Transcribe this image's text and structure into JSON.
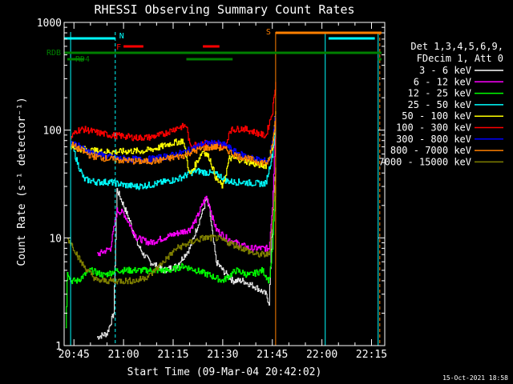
{
  "chart_data": {
    "type": "line",
    "title": "RHESSI Observing Summary Count Rates",
    "xlabel": "Start Time (09-Mar-04 20:42:02)",
    "ylabel": "Count Rate (s⁻¹ detector⁻¹)",
    "y_scale": "log",
    "ylim": [
      1,
      1000
    ],
    "xlim": [
      "20:42:02",
      "22:19:00"
    ],
    "x_ticks": [
      "20:45",
      "21:00",
      "21:15",
      "21:30",
      "21:45",
      "22:00",
      "22:15"
    ],
    "y_ticks": [
      "1",
      "10",
      "100",
      "1000"
    ],
    "grid": false,
    "legend_position": "right",
    "legend_header": [
      "Det 1,3,4,5,6,9,",
      "FDecim 1, Att 0"
    ],
    "timestamp": "15-Oct-2021 18:58",
    "flags": [
      {
        "label": "N",
        "color": "#00ffff",
        "segments": [
          [
            "20:42",
            "20:57:30"
          ],
          [
            "22:02",
            "22:16"
          ]
        ]
      },
      {
        "label": "F",
        "color": "#ff0000",
        "segments": [
          [
            "21:00",
            "21:06"
          ],
          [
            "21:24",
            "21:29"
          ]
        ]
      },
      {
        "label": "S",
        "color": "#ff8000",
        "segments": [
          [
            "21:46",
            "22:18"
          ]
        ]
      },
      {
        "label": "RDB",
        "color": "#008000",
        "segments": [
          [
            "20:42",
            "22:18"
          ]
        ]
      },
      {
        "label": "RD4",
        "color": "#008000",
        "segments": [
          [
            "20:43",
            "20:48"
          ],
          [
            "21:19",
            "21:33"
          ],
          [
            "22:17",
            "22:18"
          ]
        ]
      }
    ],
    "vlines": [
      {
        "time": "20:44",
        "color": "#00ffff",
        "style": "solid"
      },
      {
        "time": "20:57:30",
        "color": "#00ffff",
        "style": "dashed"
      },
      {
        "time": "21:46",
        "color": "#ff8000",
        "style": "solid"
      },
      {
        "time": "22:01",
        "color": "#00ffff",
        "style": "solid"
      },
      {
        "time": "22:17",
        "color": "#00ffff",
        "style": "solid"
      },
      {
        "time": "22:17:30",
        "color": "#ff8000",
        "style": "dashed"
      }
    ],
    "series": [
      {
        "name": "3 - 6 keV",
        "color": "#000000",
        "points": [
          [
            "20:52",
            1.2
          ],
          [
            "20:55",
            1.3
          ],
          [
            "20:57",
            2.0
          ],
          [
            "20:58",
            28
          ],
          [
            "21:00",
            20
          ],
          [
            "21:02",
            14
          ],
          [
            "21:04",
            9
          ],
          [
            "21:06",
            7
          ],
          [
            "21:08",
            6
          ],
          [
            "21:12",
            5
          ],
          [
            "21:16",
            5.5
          ],
          [
            "21:20",
            8
          ],
          [
            "21:22",
            12
          ],
          [
            "21:24",
            18
          ],
          [
            "21:25",
            23
          ],
          [
            "21:26",
            18
          ],
          [
            "21:27",
            10
          ],
          [
            "21:28",
            6
          ],
          [
            "21:30",
            5
          ],
          [
            "21:33",
            4
          ],
          [
            "21:36",
            4
          ],
          [
            "21:40",
            3.5
          ],
          [
            "21:43",
            3
          ],
          [
            "21:44",
            2.5
          ],
          [
            "21:45",
            15
          ],
          [
            "21:46",
            45
          ]
        ]
      },
      {
        "name": "6 - 12 keV",
        "color": "#ff00ff",
        "points": [
          [
            "20:52",
            7
          ],
          [
            "20:56",
            8
          ],
          [
            "20:58",
            18
          ],
          [
            "21:00",
            17
          ],
          [
            "21:02",
            13
          ],
          [
            "21:04",
            10
          ],
          [
            "21:08",
            9
          ],
          [
            "21:12",
            10
          ],
          [
            "21:16",
            11
          ],
          [
            "21:20",
            12
          ],
          [
            "21:22",
            15
          ],
          [
            "21:24",
            21
          ],
          [
            "21:25",
            24
          ],
          [
            "21:26",
            20
          ],
          [
            "21:27",
            15
          ],
          [
            "21:28",
            12
          ],
          [
            "21:31",
            10
          ],
          [
            "21:34",
            9
          ],
          [
            "21:38",
            8
          ],
          [
            "21:42",
            8
          ],
          [
            "21:44",
            8
          ],
          [
            "21:45",
            20
          ],
          [
            "21:46",
            120
          ]
        ]
      },
      {
        "name": "12 - 25 keV",
        "color": "#00ff00",
        "points": [
          [
            "20:42:30",
            1.5
          ],
          [
            "20:43",
            5
          ],
          [
            "20:44",
            4
          ],
          [
            "20:46",
            4
          ],
          [
            "20:50",
            5
          ],
          [
            "20:54",
            4.5
          ],
          [
            "20:58",
            5
          ],
          [
            "21:02",
            5
          ],
          [
            "21:06",
            5
          ],
          [
            "21:10",
            5
          ],
          [
            "21:14",
            5
          ],
          [
            "21:18",
            5.5
          ],
          [
            "21:22",
            5
          ],
          [
            "21:26",
            4.5
          ],
          [
            "21:30",
            4
          ],
          [
            "21:34",
            5
          ],
          [
            "21:38",
            4.5
          ],
          [
            "21:42",
            5
          ],
          [
            "21:44",
            4
          ],
          [
            "21:45",
            8
          ],
          [
            "21:46",
            30
          ]
        ]
      },
      {
        "name": "25 - 50 keV",
        "color": "#00ffff",
        "points": [
          [
            "20:44",
            80
          ],
          [
            "20:46",
            50
          ],
          [
            "20:48",
            35
          ],
          [
            "20:52",
            33
          ],
          [
            "20:56",
            33
          ],
          [
            "21:00",
            31
          ],
          [
            "21:04",
            30
          ],
          [
            "21:08",
            31
          ],
          [
            "21:12",
            33
          ],
          [
            "21:16",
            35
          ],
          [
            "21:18",
            37
          ],
          [
            "21:20",
            40
          ],
          [
            "21:22",
            42
          ],
          [
            "21:26",
            40
          ],
          [
            "21:29",
            38
          ],
          [
            "21:31",
            34
          ],
          [
            "21:33",
            33
          ],
          [
            "21:36",
            33
          ],
          [
            "21:40",
            32
          ],
          [
            "21:43",
            32
          ],
          [
            "21:45",
            60
          ],
          [
            "21:46",
            110
          ]
        ]
      },
      {
        "name": "50 - 100 keV",
        "color": "#ffff00",
        "points": [
          [
            "20:44",
            70
          ],
          [
            "20:46",
            68
          ],
          [
            "20:50",
            65
          ],
          [
            "20:54",
            63
          ],
          [
            "20:58",
            63
          ],
          [
            "21:02",
            64
          ],
          [
            "21:06",
            64
          ],
          [
            "21:10",
            68
          ],
          [
            "21:14",
            75
          ],
          [
            "21:18",
            80
          ],
          [
            "21:20",
            38
          ],
          [
            "21:22",
            50
          ],
          [
            "21:24",
            65
          ],
          [
            "21:26",
            55
          ],
          [
            "21:28",
            35
          ],
          [
            "21:30",
            30
          ],
          [
            "21:32",
            55
          ],
          [
            "21:36",
            53
          ],
          [
            "21:40",
            48
          ],
          [
            "21:43",
            47
          ],
          [
            "21:45",
            70
          ],
          [
            "21:46",
            150
          ]
        ]
      },
      {
        "name": "100 - 300 keV",
        "color": "#ff0000",
        "points": [
          [
            "20:44",
            85
          ],
          [
            "20:46",
            100
          ],
          [
            "20:48",
            102
          ],
          [
            "20:52",
            95
          ],
          [
            "20:56",
            90
          ],
          [
            "21:00",
            88
          ],
          [
            "21:04",
            85
          ],
          [
            "21:08",
            86
          ],
          [
            "21:12",
            92
          ],
          [
            "21:16",
            105
          ],
          [
            "21:19",
            110
          ],
          [
            "21:20",
            72
          ],
          [
            "21:24",
            76
          ],
          [
            "21:28",
            74
          ],
          [
            "21:31",
            72
          ],
          [
            "21:32",
            100
          ],
          [
            "21:36",
            104
          ],
          [
            "21:40",
            95
          ],
          [
            "21:43",
            88
          ],
          [
            "21:45",
            150
          ],
          [
            "21:46",
            280
          ]
        ]
      },
      {
        "name": "300 - 800 keV",
        "color": "#0000ff",
        "points": [
          [
            "20:44",
            78
          ],
          [
            "20:46",
            72
          ],
          [
            "20:50",
            62
          ],
          [
            "20:54",
            58
          ],
          [
            "20:58",
            55
          ],
          [
            "21:02",
            54
          ],
          [
            "21:06",
            53
          ],
          [
            "21:10",
            55
          ],
          [
            "21:14",
            58
          ],
          [
            "21:18",
            62
          ],
          [
            "21:20",
            66
          ],
          [
            "21:24",
            75
          ],
          [
            "21:28",
            76
          ],
          [
            "21:31",
            72
          ],
          [
            "21:34",
            62
          ],
          [
            "21:38",
            56
          ],
          [
            "21:42",
            52
          ],
          [
            "21:44",
            52
          ],
          [
            "21:45",
            80
          ],
          [
            "21:46",
            140
          ]
        ]
      },
      {
        "name": "800 - 7000 keV",
        "color": "#ff8000",
        "points": [
          [
            "20:44",
            75
          ],
          [
            "20:46",
            68
          ],
          [
            "20:50",
            58
          ],
          [
            "20:54",
            55
          ],
          [
            "20:58",
            53
          ],
          [
            "21:02",
            52
          ],
          [
            "21:06",
            51
          ],
          [
            "21:10",
            52
          ],
          [
            "21:14",
            55
          ],
          [
            "21:18",
            58
          ],
          [
            "21:20",
            62
          ],
          [
            "21:24",
            68
          ],
          [
            "21:28",
            70
          ],
          [
            "21:31",
            66
          ],
          [
            "21:34",
            58
          ],
          [
            "21:38",
            54
          ],
          [
            "21:42",
            50
          ],
          [
            "21:44",
            50
          ],
          [
            "21:45",
            75
          ],
          [
            "21:46",
            130
          ]
        ]
      },
      {
        "name": "7000 - 15000 keV",
        "color": "#808000",
        "points": [
          [
            "20:43",
            10
          ],
          [
            "20:45",
            8
          ],
          [
            "20:47",
            6
          ],
          [
            "20:49",
            5
          ],
          [
            "20:52",
            4
          ],
          [
            "20:56",
            4
          ],
          [
            "21:00",
            4
          ],
          [
            "21:04",
            4
          ],
          [
            "21:08",
            4.5
          ],
          [
            "21:12",
            6
          ],
          [
            "21:16",
            8
          ],
          [
            "21:20",
            9
          ],
          [
            "21:24",
            10
          ],
          [
            "21:28",
            10
          ],
          [
            "21:32",
            9
          ],
          [
            "21:36",
            8
          ],
          [
            "21:40",
            7
          ],
          [
            "21:44",
            7
          ],
          [
            "21:45",
            15
          ],
          [
            "21:46",
            40
          ]
        ]
      }
    ]
  }
}
